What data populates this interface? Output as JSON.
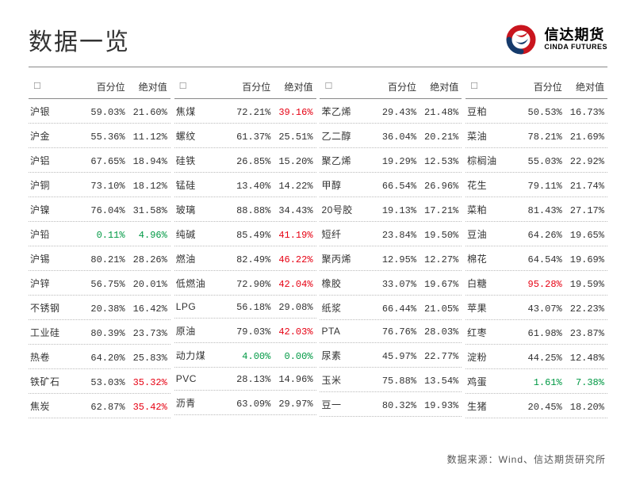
{
  "title": "数据一览",
  "logo": {
    "cn": "信达期货",
    "en": "CINDA FUTURES"
  },
  "headers": {
    "pct": "百分位",
    "abs": "绝对值"
  },
  "colors": {
    "text": "#333333",
    "red": "#e60012",
    "green": "#009944",
    "rule": "#888888",
    "dotted": "#bbbbbb",
    "bg": "#ffffff"
  },
  "font": {
    "title_size": 30,
    "cell_size": 12
  },
  "columns": [
    {
      "rows": [
        {
          "name": "沪银",
          "pct": "59.03%",
          "abs": "21.60%"
        },
        {
          "name": "沪金",
          "pct": "55.36%",
          "abs": "11.12%"
        },
        {
          "name": "沪铝",
          "pct": "67.65%",
          "abs": "18.94%"
        },
        {
          "name": "沪铜",
          "pct": "73.10%",
          "abs": "18.12%"
        },
        {
          "name": "沪镍",
          "pct": "76.04%",
          "abs": "31.58%"
        },
        {
          "name": "沪铅",
          "pct": "0.11%",
          "pct_color": "#009944",
          "abs": "4.96%",
          "abs_color": "#009944"
        },
        {
          "name": "沪锡",
          "pct": "80.21%",
          "abs": "28.26%"
        },
        {
          "name": "沪锌",
          "pct": "56.75%",
          "abs": "20.01%"
        },
        {
          "name": "不锈钢",
          "pct": "20.38%",
          "abs": "16.42%"
        },
        {
          "name": "工业硅",
          "pct": "80.39%",
          "abs": "23.73%"
        },
        {
          "name": "热卷",
          "pct": "64.20%",
          "abs": "25.83%"
        },
        {
          "name": "铁矿石",
          "pct": "53.03%",
          "abs": "35.32%",
          "abs_color": "#e60012"
        },
        {
          "name": "焦炭",
          "pct": "62.87%",
          "abs": "35.42%",
          "abs_color": "#e60012"
        }
      ]
    },
    {
      "rows": [
        {
          "name": "焦煤",
          "pct": "72.21%",
          "abs": "39.16%",
          "abs_color": "#e60012"
        },
        {
          "name": "螺纹",
          "pct": "61.37%",
          "abs": "25.51%"
        },
        {
          "name": "硅铁",
          "pct": "26.85%",
          "abs": "15.20%"
        },
        {
          "name": "锰硅",
          "pct": "13.40%",
          "abs": "14.22%"
        },
        {
          "name": "玻璃",
          "pct": "88.88%",
          "abs": "34.43%"
        },
        {
          "name": "纯碱",
          "pct": "85.49%",
          "abs": "41.19%",
          "abs_color": "#e60012"
        },
        {
          "name": "燃油",
          "pct": "82.49%",
          "abs": "46.22%",
          "abs_color": "#e60012"
        },
        {
          "name": "低燃油",
          "pct": "72.90%",
          "abs": "42.04%",
          "abs_color": "#e60012"
        },
        {
          "name": "LPG",
          "pct": "56.18%",
          "abs": "29.08%"
        },
        {
          "name": "原油",
          "pct": "79.03%",
          "abs": "42.03%",
          "abs_color": "#e60012"
        },
        {
          "name": "动力煤",
          "pct": "4.00%",
          "pct_color": "#009944",
          "abs": "0.00%",
          "abs_color": "#009944"
        },
        {
          "name": "PVC",
          "pct": "28.13%",
          "abs": "14.96%"
        },
        {
          "name": "沥青",
          "pct": "63.09%",
          "abs": "29.97%"
        }
      ]
    },
    {
      "rows": [
        {
          "name": "苯乙烯",
          "pct": "29.43%",
          "abs": "21.48%"
        },
        {
          "name": "乙二醇",
          "pct": "36.04%",
          "abs": "20.21%"
        },
        {
          "name": "聚乙烯",
          "pct": "19.29%",
          "abs": "12.53%"
        },
        {
          "name": "甲醇",
          "pct": "66.54%",
          "abs": "26.96%"
        },
        {
          "name": "20号胶",
          "pct": "19.13%",
          "abs": "17.21%"
        },
        {
          "name": "短纤",
          "pct": "23.84%",
          "abs": "19.50%"
        },
        {
          "name": "聚丙烯",
          "pct": "12.95%",
          "abs": "12.27%"
        },
        {
          "name": "橡胶",
          "pct": "33.07%",
          "abs": "19.67%"
        },
        {
          "name": "纸浆",
          "pct": "66.44%",
          "abs": "21.05%"
        },
        {
          "name": "PTA",
          "pct": "76.76%",
          "abs": "28.03%"
        },
        {
          "name": "尿素",
          "pct": "45.97%",
          "abs": "22.77%"
        },
        {
          "name": "玉米",
          "pct": "75.88%",
          "abs": "13.54%"
        },
        {
          "name": "豆一",
          "pct": "80.32%",
          "abs": "19.93%"
        }
      ]
    },
    {
      "rows": [
        {
          "name": "豆粕",
          "pct": "50.53%",
          "abs": "16.73%"
        },
        {
          "name": "菜油",
          "pct": "78.21%",
          "abs": "21.69%"
        },
        {
          "name": "棕榈油",
          "pct": "55.03%",
          "abs": "22.92%"
        },
        {
          "name": "花生",
          "pct": "79.11%",
          "abs": "21.74%"
        },
        {
          "name": "菜粕",
          "pct": "81.43%",
          "abs": "27.17%"
        },
        {
          "name": "豆油",
          "pct": "64.26%",
          "abs": "19.65%"
        },
        {
          "name": "棉花",
          "pct": "64.54%",
          "abs": "19.69%"
        },
        {
          "name": "白糖",
          "pct": "95.28%",
          "pct_color": "#e60012",
          "abs": "19.59%"
        },
        {
          "name": "苹果",
          "pct": "43.07%",
          "abs": "22.23%"
        },
        {
          "name": "红枣",
          "pct": "61.98%",
          "abs": "23.87%"
        },
        {
          "name": "淀粉",
          "pct": "44.25%",
          "abs": "12.48%"
        },
        {
          "name": "鸡蛋",
          "pct": "1.61%",
          "pct_color": "#009944",
          "abs": "7.38%",
          "abs_color": "#009944"
        },
        {
          "name": "生猪",
          "pct": "20.45%",
          "abs": "18.20%"
        }
      ]
    }
  ],
  "footer": "数据来源：Wind、信达期货研究所"
}
